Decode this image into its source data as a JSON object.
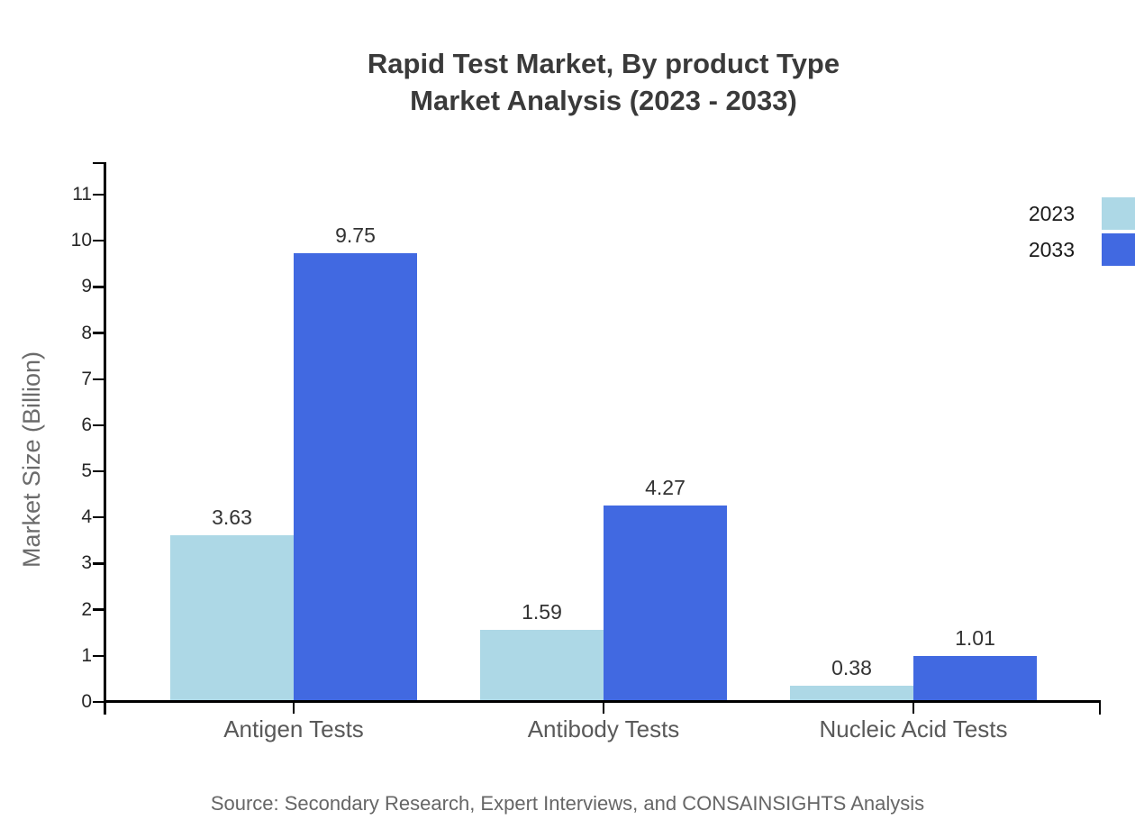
{
  "chart_data": {
    "type": "bar",
    "title_line1": "Rapid Test Market, By product Type",
    "title_line2": "Market Analysis (2023 - 2033)",
    "ylabel": "Market Size (Billion)",
    "xlabel": "",
    "categories": [
      "Antigen Tests",
      "Antibody Tests",
      "Nucleic Acid Tests"
    ],
    "series": [
      {
        "name": "2023",
        "color": "#ADD8E6",
        "values": [
          3.63,
          1.59,
          0.38
        ]
      },
      {
        "name": "2033",
        "color": "#4169E1",
        "values": [
          9.75,
          4.27,
          1.01
        ]
      }
    ],
    "value_labels": {
      "2023": [
        "3.63",
        "1.59",
        "0.38"
      ],
      "2033": [
        "9.75",
        "4.27",
        "1.01"
      ]
    },
    "yticks": [
      0,
      1,
      2,
      3,
      4,
      5,
      6,
      7,
      8,
      9,
      10,
      11
    ],
    "ylim": [
      0,
      11.7
    ],
    "grid": false,
    "legend_position": "top-right",
    "source": "Source: Secondary Research, Expert Interviews, and CONSAINSIGHTS Analysis"
  },
  "colors": {
    "series_2023": "#ADD8E6",
    "series_2033": "#4169E1",
    "title": "#3a3a3a",
    "axis": "#000000",
    "ytick_label": "#262626",
    "category_label": "#595959",
    "value_label": "#333333",
    "axis_title": "#6b6b6b",
    "legend_label": "#1a1a1a",
    "source": "#666666",
    "background": "#ffffff"
  }
}
